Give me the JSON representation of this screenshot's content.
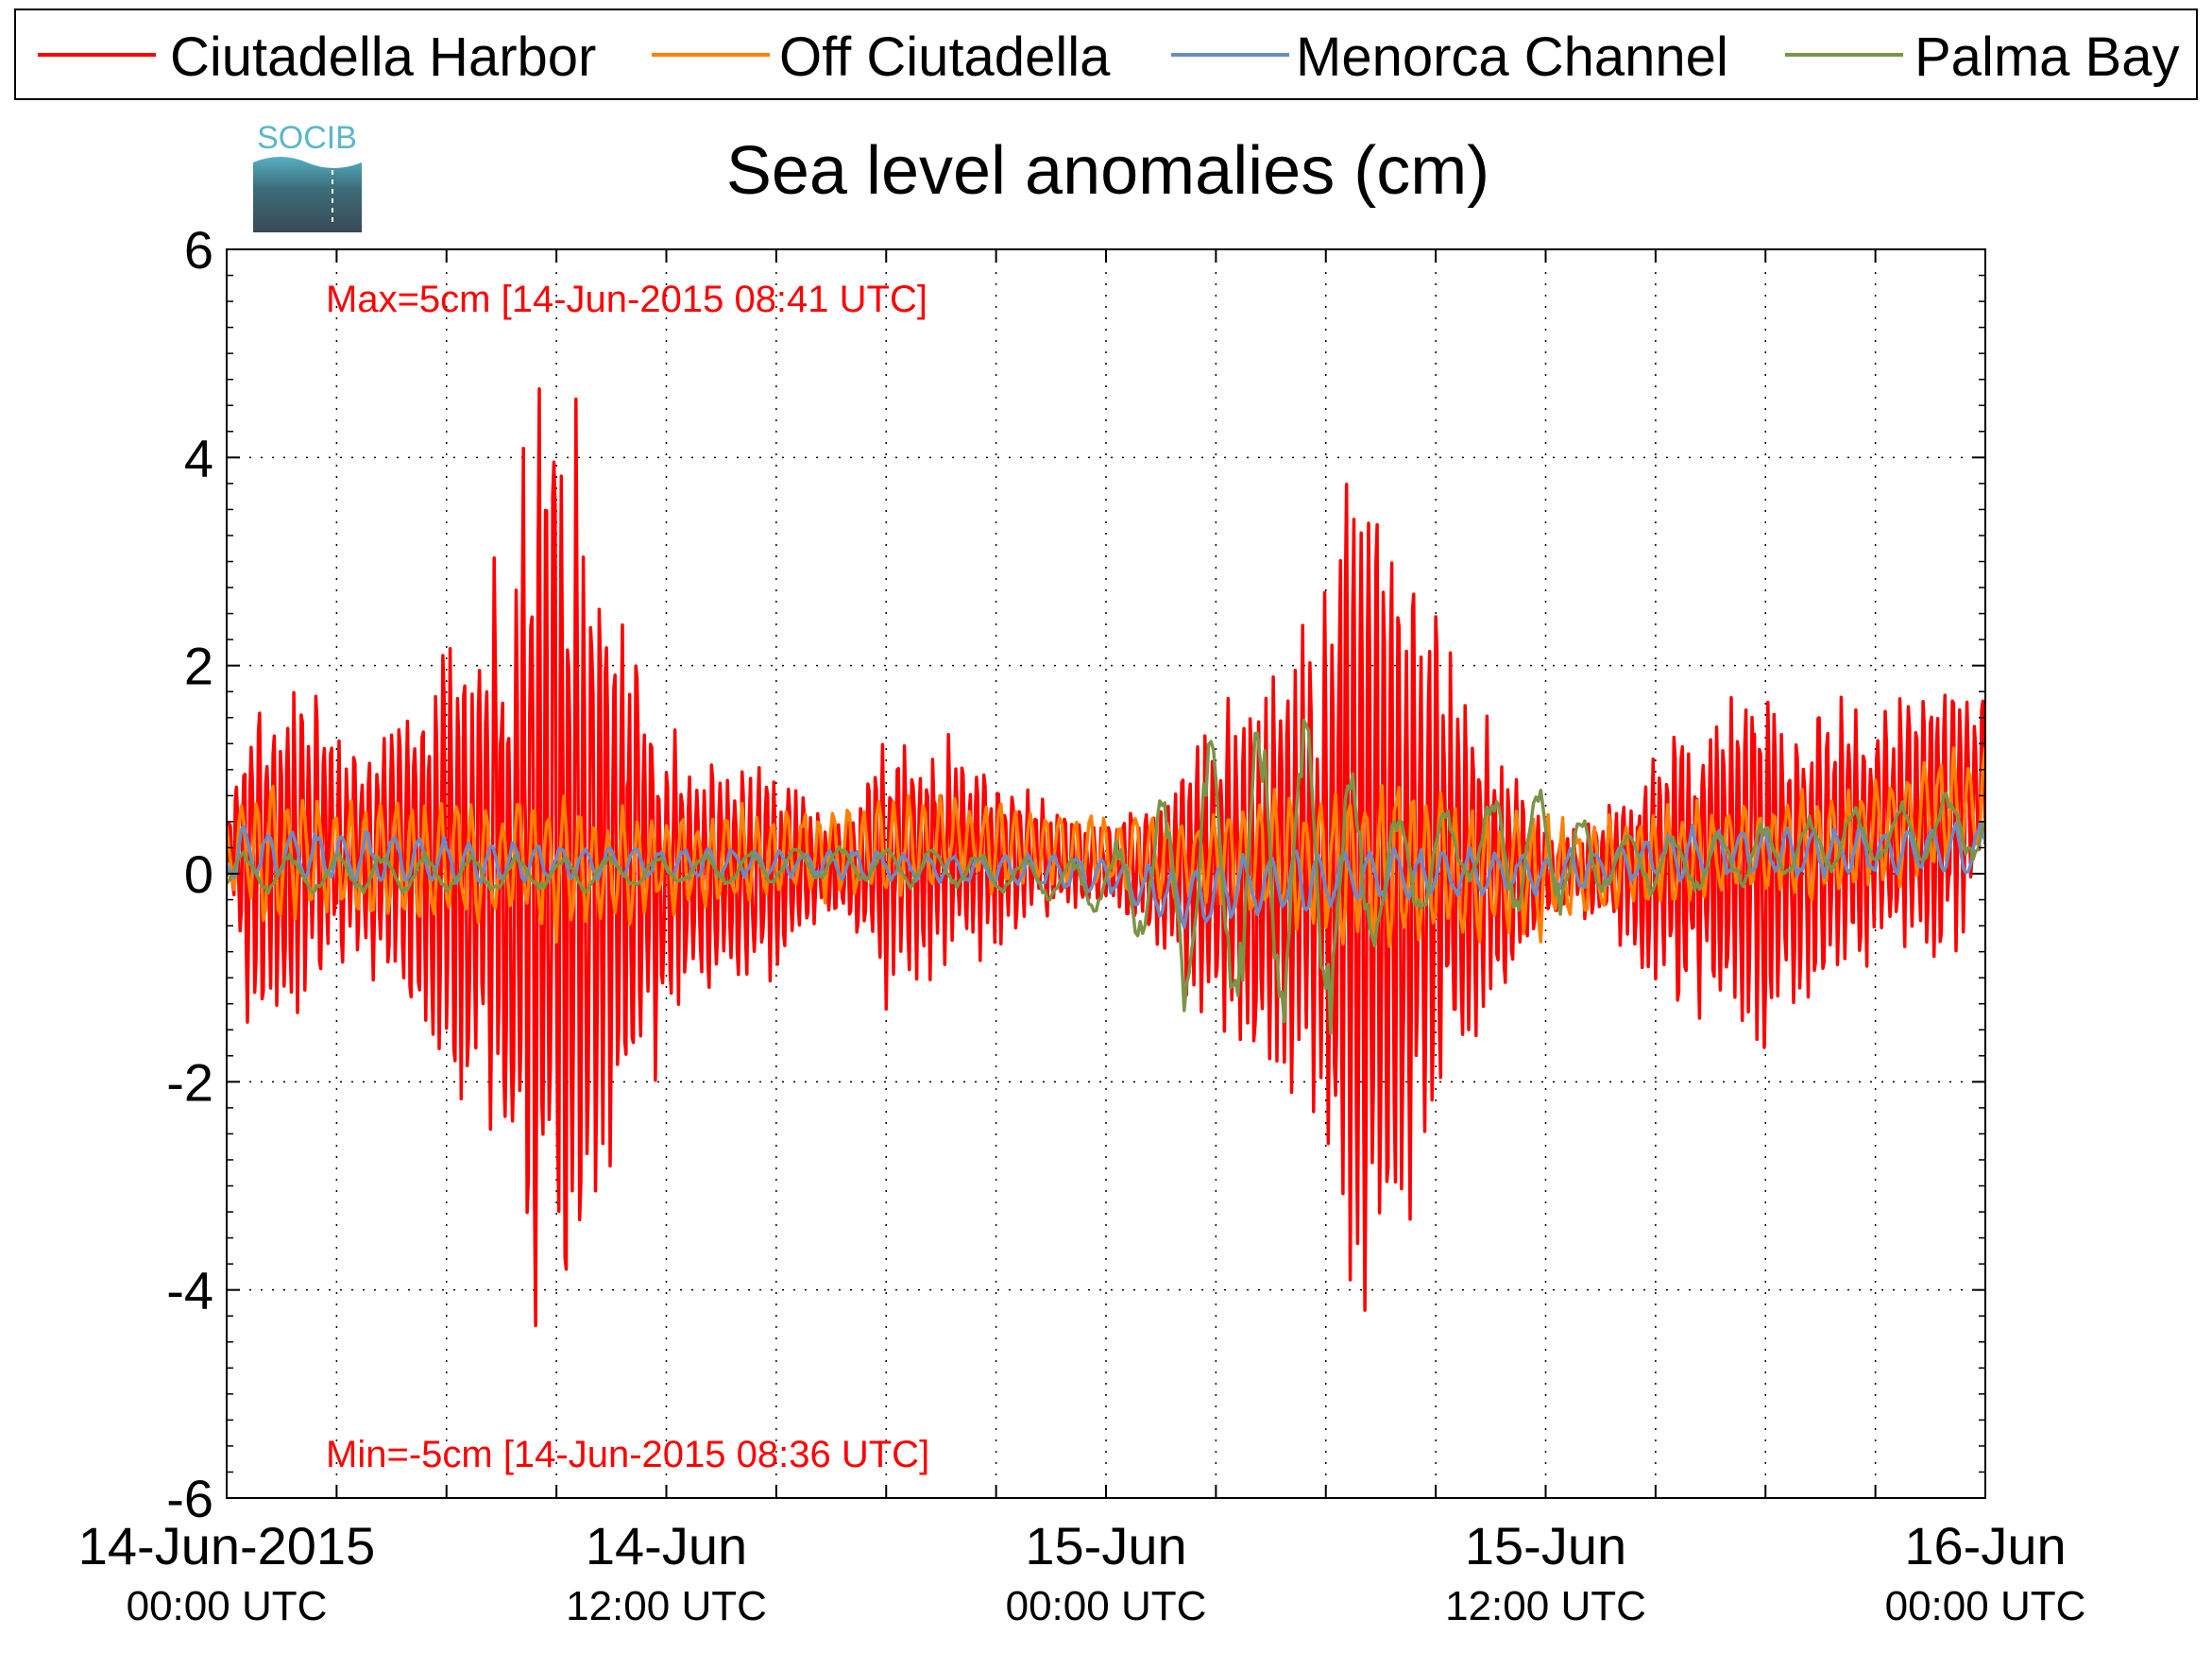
{
  "chart_data": {
    "type": "line",
    "title": "Sea level anomalies (cm)",
    "logo_text": "SOCIB",
    "ylim": [
      -6,
      6
    ],
    "yticks": [
      -6,
      -4,
      -2,
      0,
      2,
      4,
      6
    ],
    "xlim_hours": [
      0,
      48
    ],
    "grid": true,
    "legend_position": "top",
    "x_ticks": [
      {
        "hours": 0,
        "label1": "14-Jun-2015",
        "label2": "00:00 UTC"
      },
      {
        "hours": 12,
        "label1": "14-Jun",
        "label2": "12:00 UTC"
      },
      {
        "hours": 24,
        "label1": "15-Jun",
        "label2": "00:00 UTC"
      },
      {
        "hours": 36,
        "label1": "15-Jun",
        "label2": "12:00 UTC"
      },
      {
        "hours": 48,
        "label1": "16-Jun",
        "label2": "00:00 UTC"
      }
    ],
    "annotations": {
      "max_text": "Max=5cm [14-Jun-2015 08:41 UTC]",
      "min_text": "Min=-5cm [14-Jun-2015 08:36 UTC]"
    },
    "series": [
      {
        "name": "Ciutadella Harbor",
        "color": "#ff0000",
        "envelope": [
          [
            0,
            0.3
          ],
          [
            0.5,
            1.5
          ],
          [
            2,
            1.6
          ],
          [
            3,
            1.2
          ],
          [
            4,
            1.1
          ],
          [
            5,
            1.6
          ],
          [
            6,
            2.2
          ],
          [
            7,
            2.2
          ],
          [
            8,
            3.5
          ],
          [
            8.6,
            5.2
          ],
          [
            9,
            4.8
          ],
          [
            10,
            3.6
          ],
          [
            11,
            2.2
          ],
          [
            12,
            1.6
          ],
          [
            13,
            1.2
          ],
          [
            14,
            1.1
          ],
          [
            15,
            1.0
          ],
          [
            16,
            0.6
          ],
          [
            17,
            0.5
          ],
          [
            18,
            1.4
          ],
          [
            19,
            1.2
          ],
          [
            20,
            1.0
          ],
          [
            21,
            0.8
          ],
          [
            22,
            0.6
          ],
          [
            23,
            0.5
          ],
          [
            24,
            0.4
          ],
          [
            25,
            0.6
          ],
          [
            26,
            1.0
          ],
          [
            27,
            1.5
          ],
          [
            28,
            2.2
          ],
          [
            29,
            2.0
          ],
          [
            30,
            2.5
          ],
          [
            30.7,
            4.8
          ],
          [
            31,
            4.5
          ],
          [
            32,
            3.6
          ],
          [
            33,
            2.5
          ],
          [
            34,
            1.6
          ],
          [
            35,
            1.0
          ],
          [
            36,
            0.5
          ],
          [
            37,
            0.4
          ],
          [
            38,
            0.7
          ],
          [
            39,
            1.2
          ],
          [
            40,
            1.5
          ],
          [
            41,
            1.6
          ],
          [
            42,
            1.8
          ],
          [
            43,
            1.6
          ],
          [
            44,
            1.5
          ],
          [
            45,
            1.2
          ],
          [
            46,
            1.3
          ],
          [
            47,
            1.4
          ],
          [
            48,
            1.0
          ]
        ],
        "offset": [
          [
            0,
            0.2
          ],
          [
            4,
            0.2
          ],
          [
            10,
            0
          ],
          [
            16,
            0.05
          ],
          [
            20,
            0.2
          ],
          [
            24,
            0.1
          ],
          [
            28,
            -0.05
          ],
          [
            32,
            0
          ],
          [
            36,
            0
          ],
          [
            40,
            0.1
          ],
          [
            44,
            0.2
          ],
          [
            46,
            0.5
          ],
          [
            48,
            0.7
          ]
        ],
        "period_min": 12,
        "noise": 0.4
      },
      {
        "name": "Off Ciutadella",
        "color": "#ff8000",
        "envelope": [
          [
            0,
            0.3
          ],
          [
            1,
            0.8
          ],
          [
            3,
            0.6
          ],
          [
            5,
            0.6
          ],
          [
            8,
            0.7
          ],
          [
            10,
            0.6
          ],
          [
            12,
            0.5
          ],
          [
            16,
            0.5
          ],
          [
            20,
            0.5
          ],
          [
            24,
            0.4
          ],
          [
            27,
            0.5
          ],
          [
            30,
            0.8
          ],
          [
            32,
            0.9
          ],
          [
            35,
            0.7
          ],
          [
            38,
            0.5
          ],
          [
            42,
            0.5
          ],
          [
            46,
            0.6
          ],
          [
            48,
            0.6
          ]
        ],
        "offset": [
          [
            0,
            0.2
          ],
          [
            10,
            0.05
          ],
          [
            20,
            0.3
          ],
          [
            24,
            0.2
          ],
          [
            30,
            0.1
          ],
          [
            36,
            0
          ],
          [
            40,
            0.2
          ],
          [
            44,
            0.3
          ],
          [
            48,
            0.7
          ]
        ],
        "period_min": 25,
        "noise": 0.3
      },
      {
        "name": "Menorca Channel",
        "color": "#6a8cc6",
        "envelope": [
          [
            0,
            0.3
          ],
          [
            4,
            0.25
          ],
          [
            8,
            0.2
          ],
          [
            12,
            0.15
          ],
          [
            16,
            0.15
          ],
          [
            20,
            0.15
          ],
          [
            24,
            0.2
          ],
          [
            27,
            0.35
          ],
          [
            30,
            0.3
          ],
          [
            33,
            0.25
          ],
          [
            36,
            0.2
          ],
          [
            40,
            0.25
          ],
          [
            44,
            0.25
          ],
          [
            48,
            0.25
          ]
        ],
        "offset": [
          [
            0,
            0.2
          ],
          [
            8,
            0.1
          ],
          [
            16,
            0.1
          ],
          [
            20,
            0.05
          ],
          [
            24,
            0
          ],
          [
            26,
            -0.25
          ],
          [
            28,
            -0.1
          ],
          [
            32,
            0
          ],
          [
            36,
            0
          ],
          [
            40,
            0.2
          ],
          [
            44,
            0.2
          ],
          [
            48,
            0.25
          ]
        ],
        "period_min": 40,
        "noise": 0.2
      },
      {
        "name": "Palma Bay",
        "color": "#7a9448",
        "envelope": [
          [
            0,
            0.2
          ],
          [
            6,
            0.2
          ],
          [
            12,
            0.15
          ],
          [
            18,
            0.2
          ],
          [
            22,
            0.2
          ],
          [
            24,
            0.3
          ],
          [
            25,
            0.7
          ],
          [
            26,
            1.2
          ],
          [
            27,
            1.5
          ],
          [
            28,
            1.6
          ],
          [
            29,
            1.7
          ],
          [
            30,
            1.6
          ],
          [
            31,
            1.0
          ],
          [
            32,
            0.6
          ],
          [
            34,
            0.4
          ],
          [
            35,
            0.8
          ],
          [
            36,
            0.7
          ],
          [
            37,
            0.4
          ],
          [
            38,
            0.3
          ],
          [
            40,
            0.3
          ],
          [
            44,
            0.3
          ],
          [
            46,
            0.3
          ],
          [
            48,
            0.4
          ]
        ],
        "offset": [
          [
            0,
            0
          ],
          [
            10,
            0
          ],
          [
            16,
            0.1
          ],
          [
            20,
            0.05
          ],
          [
            22,
            -0.05
          ],
          [
            24,
            -0.1
          ],
          [
            26,
            -0.1
          ],
          [
            28,
            0
          ],
          [
            32,
            0
          ],
          [
            34,
            0.3
          ],
          [
            36,
            0.2
          ],
          [
            38,
            0.1
          ],
          [
            40,
            0.1
          ],
          [
            44,
            0.3
          ],
          [
            46,
            0.4
          ],
          [
            48,
            0.5
          ]
        ],
        "period_min": 75,
        "noise": 0.15
      }
    ]
  }
}
